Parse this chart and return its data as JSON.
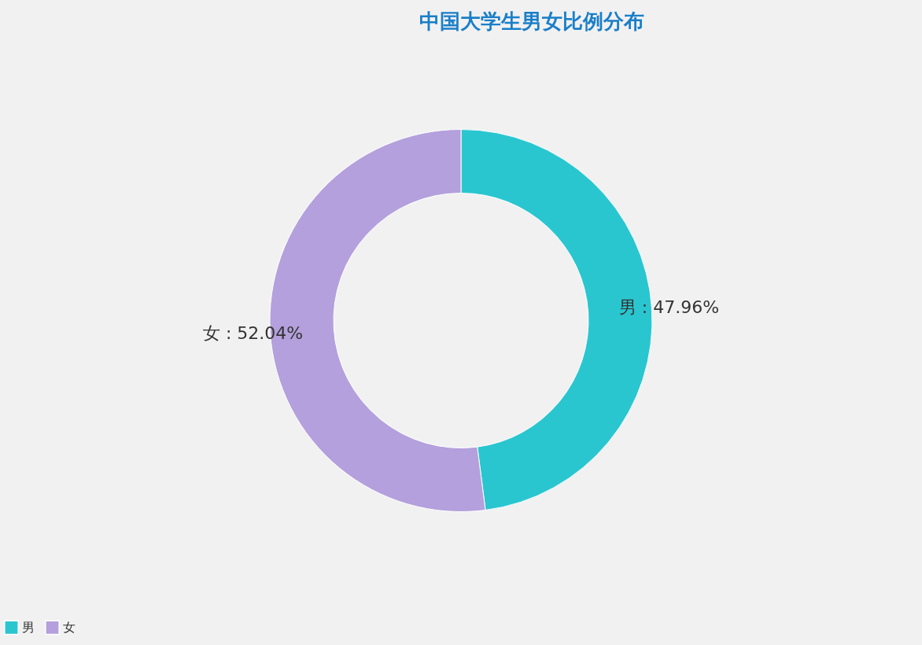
{
  "chart_data": {
    "type": "donut",
    "title": "中国大学生男女比例分布",
    "categories": [
      "男",
      "女"
    ],
    "values": [
      47.96,
      52.04
    ],
    "colors": [
      "#2ac6d0",
      "#b3a0dc"
    ],
    "value_labels": [
      "男 : 47.96%",
      "女 : 52.04%"
    ],
    "legend": "bottom"
  }
}
